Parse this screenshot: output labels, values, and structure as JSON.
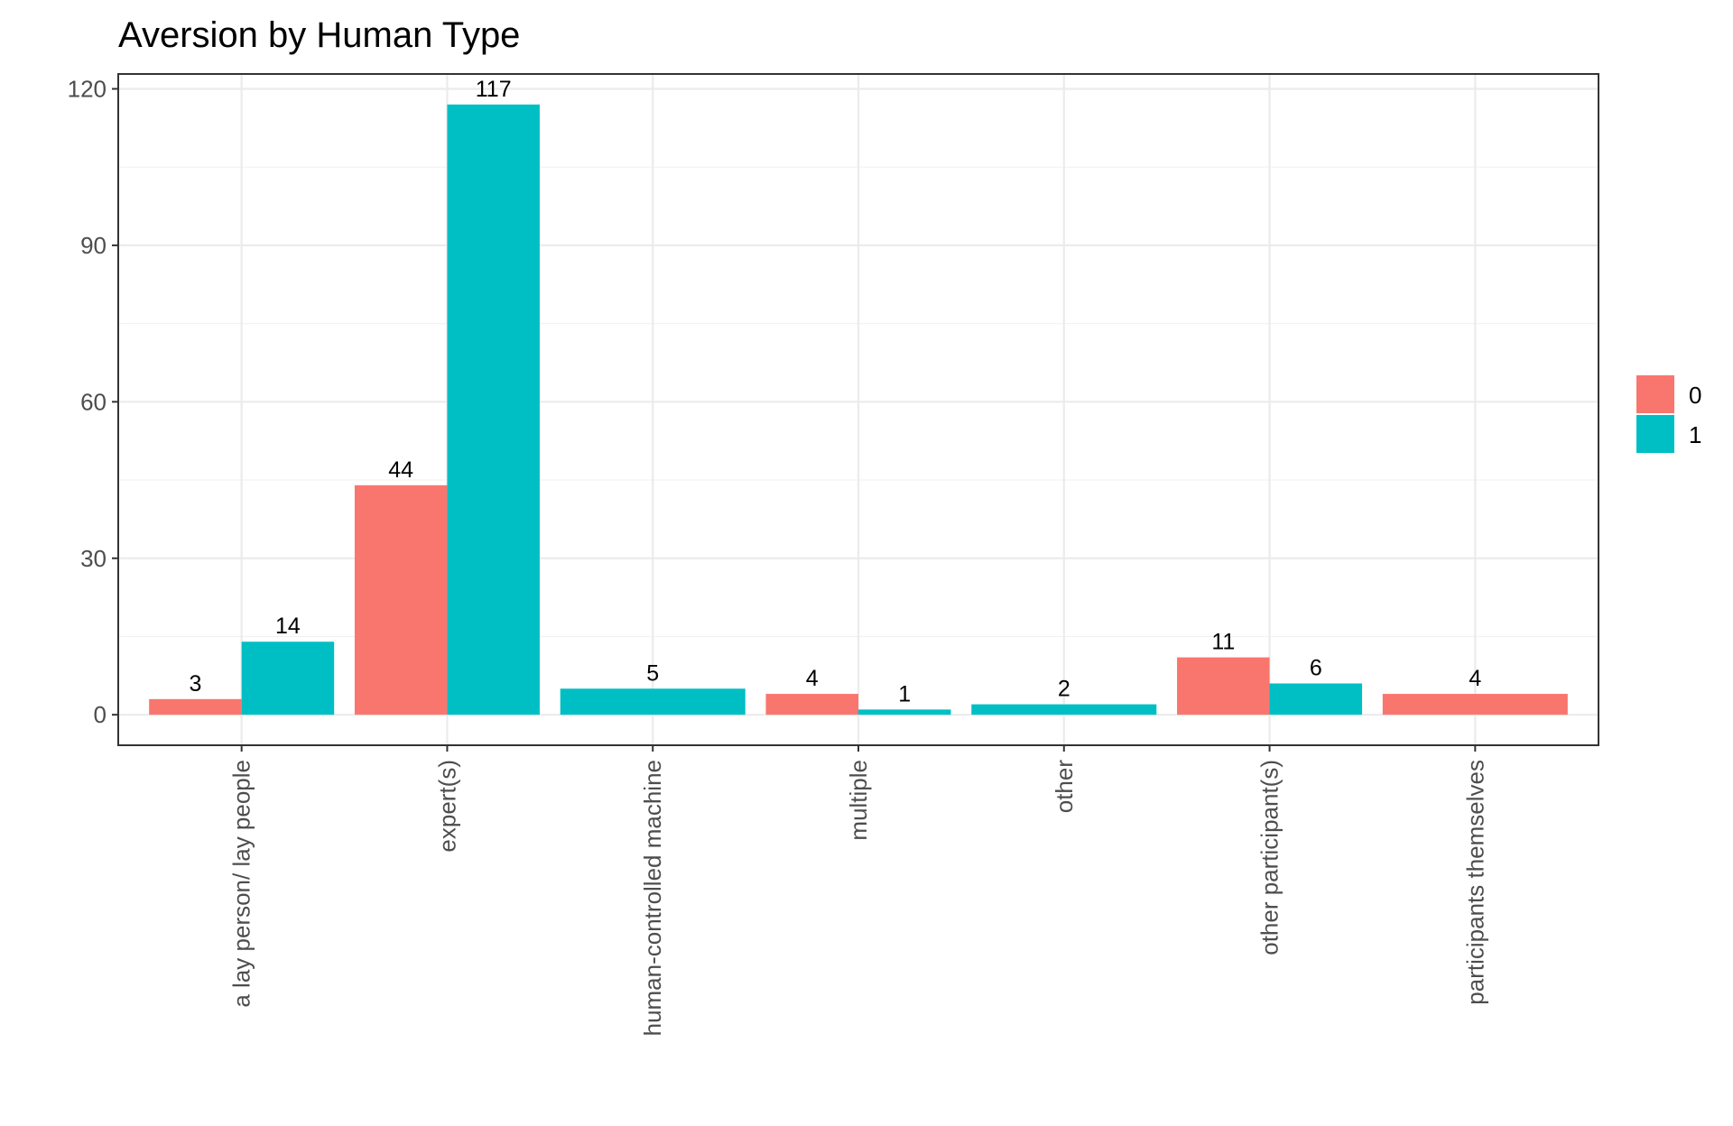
{
  "chart_data": {
    "type": "bar",
    "title": "Aversion by Human Type",
    "xlabel": "",
    "ylabel": "",
    "ylim": [
      -5.85,
      122.85
    ],
    "yticks": [
      0,
      30,
      60,
      90,
      120
    ],
    "grid": true,
    "legend_position": "right",
    "categories": [
      "a lay person/ lay people",
      "expert(s)",
      "human-controlled machine",
      "multiple",
      "other",
      "other participant(s)",
      "participants themselves"
    ],
    "series": [
      {
        "name": "0",
        "color": "#F8766D",
        "values": [
          3,
          44,
          null,
          4,
          null,
          11,
          4
        ]
      },
      {
        "name": "1",
        "color": "#00BFC4",
        "values": [
          14,
          117,
          5,
          1,
          2,
          6,
          null
        ]
      }
    ]
  }
}
